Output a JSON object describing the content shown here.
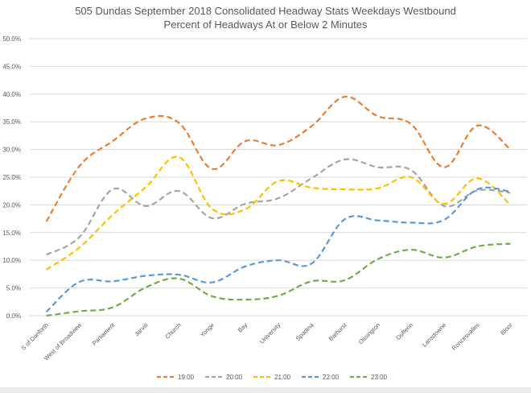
{
  "chart_data": {
    "type": "line",
    "title": "505 Dundas   September 2018  Consolidated Headway Stats Weekdays Westbound",
    "subtitle": "Percent of Headways At or Below 2 Minutes",
    "xlabel": "",
    "ylabel": "",
    "ylim": [
      0,
      50
    ],
    "y_ticks": [
      "0.0%",
      "5.0%",
      "10.0%",
      "15.0%",
      "20.0%",
      "25.0%",
      "30.0%",
      "35.0%",
      "40.0%",
      "45.0%",
      "50.0%"
    ],
    "grid": true,
    "legend_position": "bottom",
    "categories": [
      "S of Danforth",
      "West of Broadview",
      "Parliament",
      "Jarvis",
      "Church",
      "Yonge",
      "Bay",
      "University",
      "Spadina",
      "Bathurst",
      "Ossington",
      "Dufferin",
      "Lansdowne",
      "Roncesvalles",
      "Bloor"
    ],
    "series": [
      {
        "name": "19:00",
        "color": "#ed7d31",
        "values": [
          17.0,
          27.0,
          31.5,
          35.6,
          34.8,
          26.5,
          31.5,
          30.8,
          34.2,
          39.5,
          36.0,
          34.6,
          26.8,
          34.3,
          30.0
        ]
      },
      {
        "name": "20:00",
        "color": "#a5a5a5",
        "values": [
          11.0,
          14.2,
          22.8,
          19.8,
          22.5,
          17.6,
          20.2,
          21.2,
          24.8,
          28.2,
          26.8,
          26.3,
          19.8,
          22.6,
          22.2
        ]
      },
      {
        "name": "21:00",
        "color": "#ffc000",
        "values": [
          8.3,
          12.3,
          18.2,
          23.2,
          28.6,
          19.3,
          19.2,
          24.3,
          23.1,
          22.8,
          23.0,
          25.0,
          20.2,
          24.8,
          20.0
        ]
      },
      {
        "name": "22:00",
        "color": "#5b9bd5",
        "values": [
          0.7,
          6.1,
          6.2,
          7.2,
          7.4,
          6.0,
          8.9,
          10.0,
          9.4,
          17.4,
          17.2,
          16.8,
          17.3,
          22.8,
          22.4
        ]
      },
      {
        "name": "23:00",
        "color": "#70ad47",
        "values": [
          0.0,
          0.8,
          1.5,
          5.1,
          6.7,
          3.5,
          2.9,
          3.6,
          6.2,
          6.4,
          10.2,
          11.9,
          10.5,
          12.5,
          13.0
        ]
      }
    ]
  }
}
